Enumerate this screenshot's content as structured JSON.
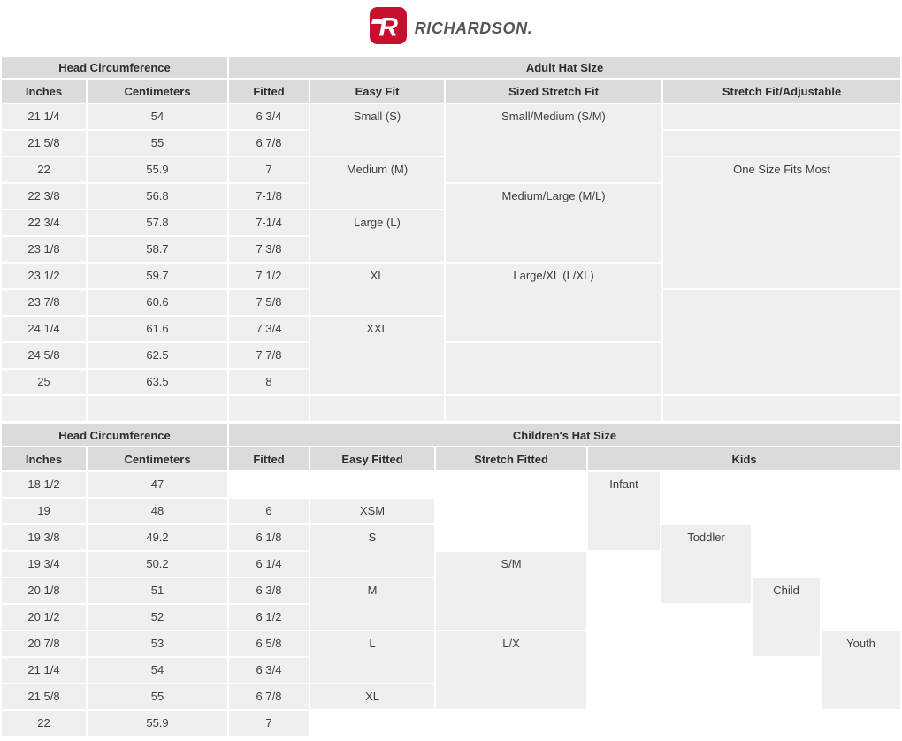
{
  "brand": {
    "name": "RICHARDSON.",
    "logo_letter": "R",
    "logo_color": "#c8102e",
    "wordmark_color": "#55565a"
  },
  "colors": {
    "header_bg": "#dbdbdb",
    "cell_bg": "#efefef",
    "gap": "#ffffff",
    "text": "#3f3f3f"
  },
  "adult": {
    "group_headers": [
      "Head Circumference",
      "Adult Hat Size"
    ],
    "columns": [
      "Inches",
      "Centimeters",
      "Fitted",
      "Easy Fit",
      "Sized Stretch Fit",
      "Stretch Fit/Adjustable"
    ],
    "rows": [
      [
        {
          "t": "21 1/4"
        },
        {
          "t": "54"
        },
        {
          "t": "6 3/4"
        },
        {
          "t": "Small (S)",
          "rs": 2
        },
        {
          "t": "Small/Medium (S/M)",
          "rs": 3
        },
        {
          "t": ""
        }
      ],
      [
        {
          "t": "21 5/8"
        },
        {
          "t": "55"
        },
        {
          "t": "6 7/8"
        },
        {
          "t": ""
        }
      ],
      [
        {
          "t": "22"
        },
        {
          "t": "55.9"
        },
        {
          "t": "7"
        },
        {
          "t": "Medium (M)",
          "rs": 2
        },
        {
          "t": "One Size Fits Most",
          "rs": 5
        }
      ],
      [
        {
          "t": "22 3/8"
        },
        {
          "t": "56.8"
        },
        {
          "t": "7-1/8"
        },
        {
          "t": "Medium/Large (M/L)",
          "rs": 3
        }
      ],
      [
        {
          "t": "22 3/4"
        },
        {
          "t": "57.8"
        },
        {
          "t": "7-1/4"
        },
        {
          "t": "Large (L)",
          "rs": 2
        }
      ],
      [
        {
          "t": "23 1/8"
        },
        {
          "t": "58.7"
        },
        {
          "t": "7 3/8"
        }
      ],
      [
        {
          "t": "23 1/2"
        },
        {
          "t": "59.7"
        },
        {
          "t": "7 1/2"
        },
        {
          "t": "XL",
          "rs": 2
        },
        {
          "t": "Large/XL (L/XL)",
          "rs": 3
        }
      ],
      [
        {
          "t": "23 7/8"
        },
        {
          "t": "60.6"
        },
        {
          "t": "7 5/8"
        },
        {
          "t": "",
          "rs": 4
        }
      ],
      [
        {
          "t": "24 1/4"
        },
        {
          "t": "61.6"
        },
        {
          "t": "7 3/4"
        },
        {
          "t": "XXL",
          "rs": 3
        }
      ],
      [
        {
          "t": "24 5/8"
        },
        {
          "t": "62.5"
        },
        {
          "t": "7 7/8"
        },
        {
          "t": "",
          "rs": 2
        }
      ],
      [
        {
          "t": "25"
        },
        {
          "t": "63.5"
        },
        {
          "t": "8"
        }
      ],
      [
        {
          "t": ""
        },
        {
          "t": ""
        },
        {
          "t": ""
        },
        {
          "t": ""
        },
        {
          "t": ""
        },
        {
          "t": ""
        }
      ]
    ]
  },
  "children": {
    "group_headers": [
      "Head Circumference",
      "Children's Hat Size"
    ],
    "columns": [
      "Inches",
      "Centimeters",
      "Fitted",
      "Easy Fitted",
      "Stretch Fitted",
      "Kids"
    ],
    "rows": [
      [
        {
          "t": "18 1/2"
        },
        {
          "t": "47"
        },
        {
          "t": "",
          "w": 1
        },
        {
          "t": "",
          "w": 1
        },
        {
          "t": "",
          "w": 1
        },
        {
          "t": "Infant",
          "rs": 3
        },
        {
          "t": "",
          "w": 1
        },
        {
          "t": "",
          "w": 1
        },
        {
          "t": "",
          "w": 1
        }
      ],
      [
        {
          "t": "19"
        },
        {
          "t": "48"
        },
        {
          "t": "6"
        },
        {
          "t": "XSM"
        },
        {
          "t": "",
          "w": 1
        },
        {
          "t": "",
          "w": 1
        },
        {
          "t": "",
          "w": 1
        },
        {
          "t": "",
          "w": 1
        }
      ],
      [
        {
          "t": "19 3/8"
        },
        {
          "t": "49.2"
        },
        {
          "t": "6 1/8"
        },
        {
          "t": "S",
          "rs": 2
        },
        {
          "t": "",
          "w": 1
        },
        {
          "t": "Toddler",
          "rs": 3
        },
        {
          "t": "",
          "w": 1
        },
        {
          "t": "",
          "w": 1
        }
      ],
      [
        {
          "t": "19 3/4"
        },
        {
          "t": "50.2"
        },
        {
          "t": "6 1/4"
        },
        {
          "t": "S/M",
          "rs": 3
        },
        {
          "t": "",
          "w": 1
        },
        {
          "t": "",
          "w": 1
        },
        {
          "t": "",
          "w": 1
        }
      ],
      [
        {
          "t": "20 1/8"
        },
        {
          "t": "51"
        },
        {
          "t": "6 3/8"
        },
        {
          "t": "M",
          "rs": 2
        },
        {
          "t": "",
          "w": 1
        },
        {
          "t": "Child",
          "rs": 3
        },
        {
          "t": "",
          "w": 1
        }
      ],
      [
        {
          "t": "20 1/2"
        },
        {
          "t": "52"
        },
        {
          "t": "6 1/2"
        },
        {
          "t": "",
          "w": 1
        },
        {
          "t": "",
          "w": 1
        }
      ],
      [
        {
          "t": "20 7/8"
        },
        {
          "t": "53"
        },
        {
          "t": "6 5/8"
        },
        {
          "t": "L",
          "rs": 2
        },
        {
          "t": "L/X",
          "rs": 3
        },
        {
          "t": "",
          "w": 1
        },
        {
          "t": "",
          "w": 1
        },
        {
          "t": "Youth",
          "rs": 3
        }
      ],
      [
        {
          "t": "21 1/4"
        },
        {
          "t": "54"
        },
        {
          "t": "6 3/4"
        },
        {
          "t": "",
          "w": 1
        },
        {
          "t": "",
          "w": 1
        }
      ],
      [
        {
          "t": "21 5/8"
        },
        {
          "t": "55"
        },
        {
          "t": "6 7/8"
        },
        {
          "t": "XL"
        },
        {
          "t": "",
          "w": 1
        },
        {
          "t": "",
          "w": 1
        },
        {
          "t": "",
          "w": 1
        }
      ],
      [
        {
          "t": "22"
        },
        {
          "t": "55.9"
        },
        {
          "t": "7"
        },
        {
          "t": "",
          "w": 1
        },
        {
          "t": "",
          "w": 1
        },
        {
          "t": "",
          "w": 1
        },
        {
          "t": "",
          "w": 1
        },
        {
          "t": "",
          "w": 1
        },
        {
          "t": "",
          "w": 1
        }
      ]
    ]
  }
}
